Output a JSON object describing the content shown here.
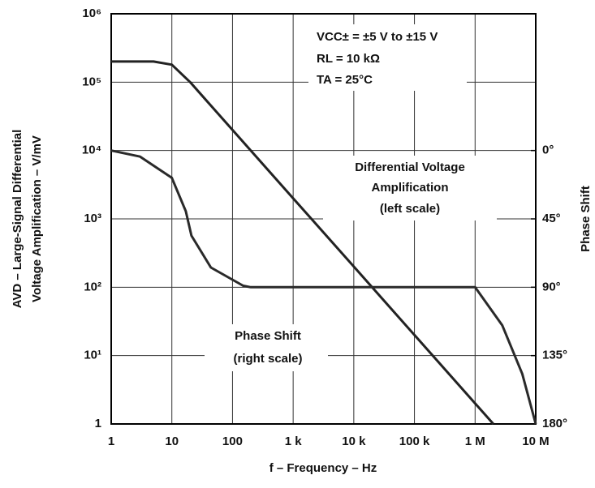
{
  "chart_data": {
    "type": "line",
    "xlabel": "f – Frequency – Hz",
    "ylabel": [
      "AVD – Large-Signal Differential",
      "Voltage Amplification – V/mV"
    ],
    "y2label": "Phase Shift",
    "annotations": [
      "VCC± = ±5 V to ±15 V",
      "RL = 10 kΩ",
      "TA = 25°C",
      "Differential Voltage",
      "Amplification",
      "(left scale)",
      "Phase Shift",
      "(right scale)"
    ],
    "xscale": "log",
    "yscale": "log",
    "grid": true,
    "xlim": [
      1,
      10000000
    ],
    "ylim": [
      1,
      1000000
    ],
    "y2lim": [
      180,
      -90
    ],
    "xticks": [
      1,
      10,
      100,
      {
        "value": 1000,
        "label": "1 k"
      },
      {
        "value": 10000,
        "label": "10 k"
      },
      {
        "value": 100000,
        "label": "100 k"
      },
      {
        "value": 1000000,
        "label": "1 M"
      },
      {
        "value": 10000000,
        "label": "10 M"
      }
    ],
    "yticks": [
      1,
      {
        "value": 10,
        "label": "10¹"
      },
      {
        "value": 100,
        "label": "10²"
      },
      {
        "value": 1000,
        "label": "10³"
      },
      {
        "value": 10000,
        "label": "10⁴"
      },
      {
        "value": 100000,
        "label": "10⁵"
      },
      {
        "value": 1000000,
        "label": "10⁶"
      }
    ],
    "y2ticks": [
      {
        "value": 0,
        "label": "0°"
      },
      {
        "value": 45,
        "label": "45°"
      },
      {
        "value": 90,
        "label": "90°"
      },
      {
        "value": 135,
        "label": "135°"
      },
      {
        "value": 180,
        "label": "180°"
      }
    ],
    "series": [
      {
        "name": "Differential Voltage Amplification",
        "color": "#222222",
        "axis": "y",
        "x": [
          1,
          5,
          10,
          20,
          100,
          1000,
          10000,
          100000,
          1000000,
          2000000
        ],
        "values": [
          200000,
          200000,
          180000,
          100000,
          20000,
          2000,
          200,
          20,
          2,
          1
        ]
      },
      {
        "name": "Phase Shift",
        "color": "#2a2a2a",
        "axis": "y2",
        "x": [
          1,
          3,
          10,
          17,
          21,
          44,
          150,
          200,
          1000000,
          2800000,
          6000000,
          10000000
        ],
        "values": [
          0,
          4,
          18,
          40,
          56,
          77,
          89,
          90,
          90,
          115,
          147,
          180
        ]
      }
    ]
  }
}
